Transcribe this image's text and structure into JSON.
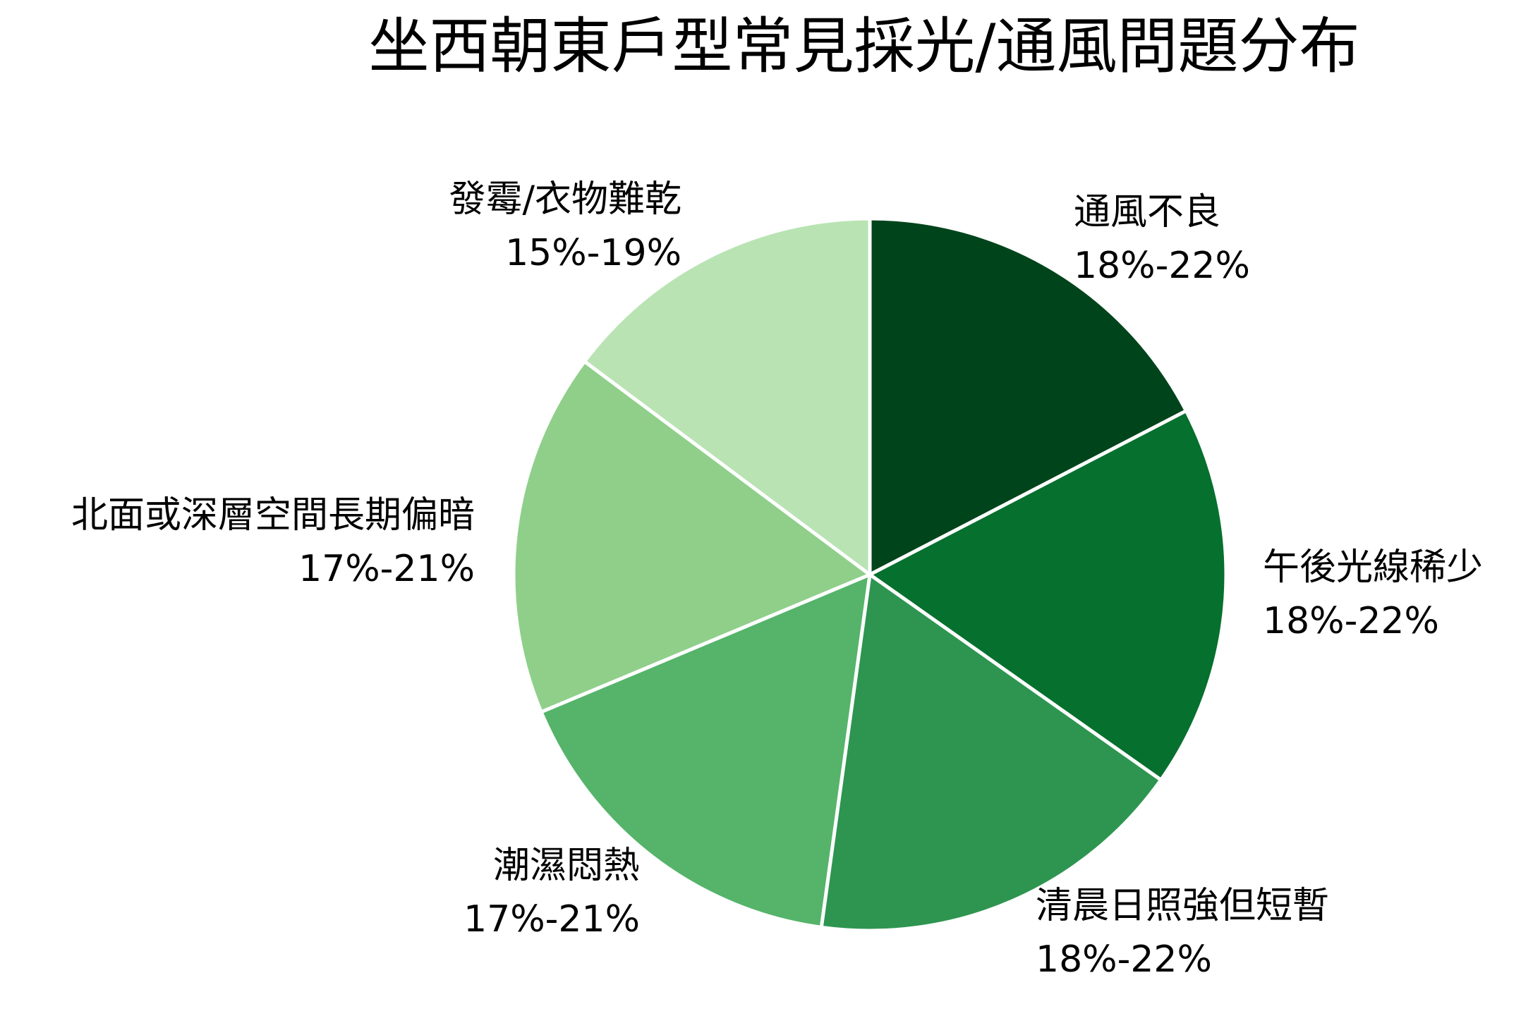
{
  "chart_data": {
    "type": "pie",
    "title": "坐西朝東戶型常見採光/通風問題分布",
    "start_angle": "top (12 o'clock)",
    "direction": "clockwise",
    "slices": [
      {
        "label": "通風不良",
        "value_text": "18%-22%",
        "value": 20,
        "color": "#00441b"
      },
      {
        "label": "午後光線稀少",
        "value_text": "18%-22%",
        "value": 20,
        "color": "#06702e"
      },
      {
        "label": "清晨日照強但短暫",
        "value_text": "18%-22%",
        "value": 20,
        "color": "#2e9550"
      },
      {
        "label": "潮濕悶熱",
        "value_text": "17%-21%",
        "value": 19,
        "color": "#55b46a"
      },
      {
        "label": "北面或深層空間長期偏暗",
        "value_text": "17%-21%",
        "value": 19,
        "color": "#8fcf8a"
      },
      {
        "label": "發霉/衣物難乾",
        "value_text": "15%-19%",
        "value": 17,
        "color": "#b9e3b3"
      }
    ],
    "slice_border_color": "#ffffff",
    "legend": "none (direct labels)"
  }
}
